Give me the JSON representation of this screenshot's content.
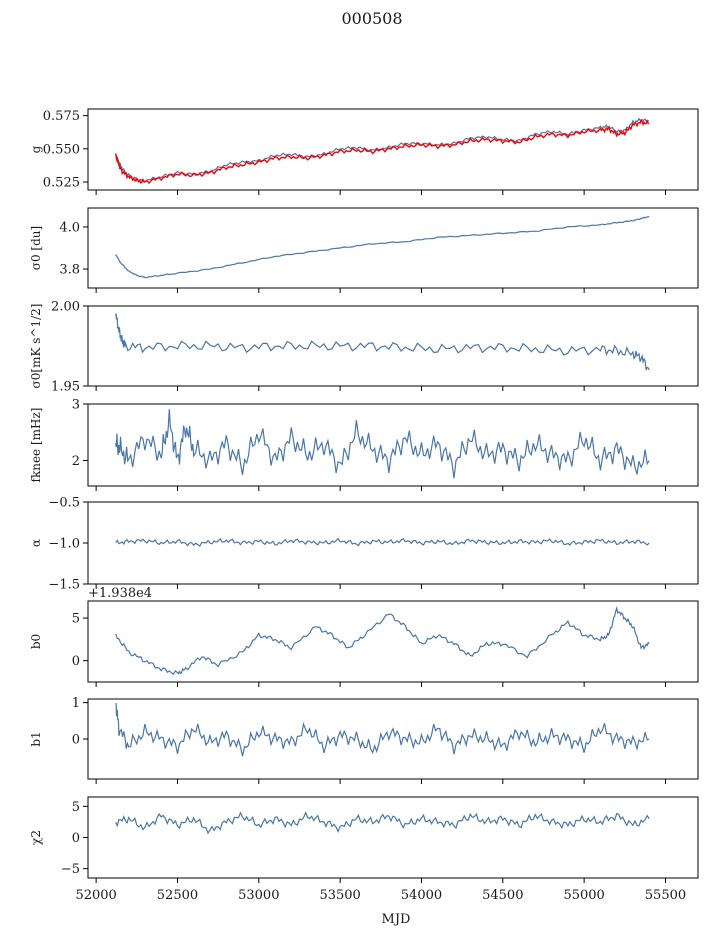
{
  "figure": {
    "title": "000508",
    "xlabel": "MJD",
    "xlim": [
      51950,
      55700
    ],
    "xticks": [
      52000,
      52500,
      53000,
      53500,
      54000,
      54500,
      55000,
      55500
    ],
    "offset_text": "+1.938e4",
    "colors": {
      "series": "#4a76a8",
      "overlay": "#ff0000",
      "axis": "#000000"
    }
  },
  "chart_data": [
    {
      "type": "line",
      "name": "gain",
      "ylabel": "g",
      "ylim": [
        0.519,
        0.58
      ],
      "yticks": [
        0.525,
        0.55,
        0.575
      ],
      "ytick_labels": [
        "0.525",
        "0.550",
        "0.575"
      ],
      "x": [
        52120,
        52140,
        52160,
        52200,
        52250,
        52300,
        52400,
        52500,
        52600,
        52700,
        52800,
        52900,
        53000,
        53100,
        53200,
        53300,
        53400,
        53500,
        53600,
        53700,
        53800,
        53900,
        54000,
        54100,
        54200,
        54300,
        54400,
        54500,
        54600,
        54700,
        54800,
        54900,
        55000,
        55100,
        55150,
        55200,
        55250,
        55300,
        55350,
        55400
      ],
      "series": [
        {
          "name": "gain",
          "color": "#4a76a8",
          "values": [
            0.546,
            0.54,
            0.535,
            0.53,
            0.527,
            0.526,
            0.529,
            0.532,
            0.531,
            0.533,
            0.538,
            0.54,
            0.541,
            0.545,
            0.546,
            0.544,
            0.546,
            0.55,
            0.551,
            0.549,
            0.551,
            0.554,
            0.554,
            0.553,
            0.554,
            0.558,
            0.559,
            0.557,
            0.556,
            0.561,
            0.563,
            0.561,
            0.564,
            0.566,
            0.567,
            0.563,
            0.564,
            0.57,
            0.572,
            0.571
          ]
        },
        {
          "name": "gain-overlay",
          "color": "#ff0000",
          "values": [
            0.545,
            0.538,
            0.533,
            0.529,
            0.526,
            0.525,
            0.528,
            0.531,
            0.53,
            0.532,
            0.536,
            0.538,
            0.54,
            0.543,
            0.544,
            0.543,
            0.545,
            0.548,
            0.549,
            0.548,
            0.55,
            0.552,
            0.553,
            0.552,
            0.553,
            0.556,
            0.557,
            0.556,
            0.555,
            0.559,
            0.561,
            0.56,
            0.563,
            0.564,
            0.565,
            0.561,
            0.562,
            0.568,
            0.57,
            0.569
          ]
        }
      ]
    },
    {
      "type": "line",
      "name": "sigma0-du",
      "ylabel": "σ0 [du]",
      "ylim": [
        3.71,
        4.09
      ],
      "yticks": [
        3.8,
        4.0
      ],
      "ytick_labels": [
        "3.8",
        "4.0"
      ],
      "x": [
        52120,
        52150,
        52200,
        52250,
        52300,
        52400,
        52500,
        52700,
        52900,
        53100,
        53300,
        53500,
        53700,
        53900,
        54100,
        54300,
        54500,
        54700,
        54900,
        55100,
        55200,
        55300,
        55350,
        55400
      ],
      "values": [
        3.87,
        3.83,
        3.79,
        3.77,
        3.76,
        3.77,
        3.78,
        3.8,
        3.83,
        3.86,
        3.88,
        3.9,
        3.92,
        3.93,
        3.95,
        3.96,
        3.97,
        3.98,
        4.0,
        4.01,
        4.02,
        4.03,
        4.04,
        4.05
      ]
    },
    {
      "type": "line",
      "name": "sigma0-mks",
      "ylabel": "σ0[mK s^1/2]",
      "ylim": [
        1.95,
        2.0
      ],
      "yticks": [
        1.95,
        2.0
      ],
      "ytick_labels": [
        "1.95",
        "2.00"
      ],
      "x": [
        52120,
        52140,
        52160,
        52180,
        52300,
        52500,
        52700,
        52900,
        53100,
        53300,
        53500,
        53700,
        53900,
        54100,
        54300,
        54500,
        54700,
        54900,
        55100,
        55200,
        55300,
        55350,
        55400
      ],
      "values": [
        1.995,
        1.985,
        1.978,
        1.975,
        1.974,
        1.975,
        1.975,
        1.974,
        1.975,
        1.975,
        1.975,
        1.975,
        1.974,
        1.973,
        1.974,
        1.974,
        1.973,
        1.972,
        1.973,
        1.972,
        1.97,
        1.968,
        1.96
      ]
    },
    {
      "type": "line",
      "name": "fknee",
      "ylabel": "fknee [mHz]",
      "ylim": [
        1.55,
        3.0
      ],
      "yticks": [
        2,
        3
      ],
      "ytick_labels": [
        "2",
        "3"
      ],
      "x": [
        52120,
        52150,
        52200,
        52300,
        52400,
        52450,
        52500,
        52550,
        52600,
        52700,
        52800,
        52900,
        53000,
        53100,
        53200,
        53300,
        53400,
        53500,
        53600,
        53700,
        53800,
        53900,
        54000,
        54100,
        54200,
        54300,
        54400,
        54500,
        54600,
        54700,
        54800,
        54900,
        55000,
        55100,
        55200,
        55300,
        55400
      ],
      "values": [
        2.3,
        2.2,
        2.0,
        2.4,
        2.1,
        2.7,
        2.0,
        2.6,
        2.2,
        2.0,
        2.3,
        1.9,
        2.5,
        2.0,
        2.4,
        2.1,
        2.3,
        1.9,
        2.5,
        2.2,
        2.0,
        2.4,
        2.1,
        2.3,
        1.9,
        2.4,
        2.1,
        2.2,
        2.0,
        2.3,
        2.1,
        2.0,
        2.4,
        2.0,
        2.2,
        1.9,
        2.0
      ]
    },
    {
      "type": "line",
      "name": "alpha",
      "ylabel": "α",
      "ylim": [
        -1.5,
        -0.5
      ],
      "yticks": [
        -1.5,
        -1.0,
        -0.5
      ],
      "ytick_labels": [
        "−1.5",
        "−1.0",
        "−0.5"
      ],
      "x": [
        52120,
        52200,
        52300,
        52400,
        52500,
        52600,
        52700,
        52800,
        52900,
        53000,
        53100,
        53200,
        53300,
        53400,
        53500,
        53600,
        53700,
        53800,
        53900,
        54000,
        54100,
        54200,
        54300,
        54400,
        54500,
        54600,
        54700,
        54800,
        54900,
        55000,
        55100,
        55200,
        55300,
        55400
      ],
      "values": [
        -1.0,
        -0.98,
        -0.97,
        -1.0,
        -0.98,
        -1.02,
        -0.99,
        -0.97,
        -1.0,
        -0.98,
        -1.01,
        -0.97,
        -0.99,
        -1.0,
        -0.97,
        -1.01,
        -0.98,
        -0.99,
        -0.97,
        -1.0,
        -0.98,
        -1.01,
        -0.97,
        -0.99,
        -1.0,
        -0.98,
        -0.99,
        -0.97,
        -1.01,
        -0.99,
        -0.97,
        -1.0,
        -0.98,
        -1.0
      ]
    },
    {
      "type": "line",
      "name": "b0",
      "ylabel": "b0",
      "ylim": [
        -2.5,
        7
      ],
      "yticks": [
        0,
        5
      ],
      "ytick_labels": [
        "0",
        "5"
      ],
      "x": [
        52120,
        52200,
        52300,
        52400,
        52500,
        52550,
        52650,
        52750,
        52900,
        53000,
        53100,
        53200,
        53350,
        53450,
        53550,
        53650,
        53800,
        53900,
        54000,
        54100,
        54200,
        54300,
        54400,
        54500,
        54650,
        54800,
        54900,
        55000,
        55100,
        55150,
        55200,
        55250,
        55300,
        55350,
        55400
      ],
      "values": [
        3,
        1,
        0,
        -1,
        -1.5,
        -1,
        0.5,
        -0.5,
        1,
        3,
        2.5,
        1.5,
        4,
        3,
        1.5,
        3,
        5.5,
        4,
        2,
        3,
        2,
        0.5,
        2,
        2,
        0.5,
        3,
        4.5,
        3,
        2.5,
        3,
        6,
        5,
        4,
        1.5,
        2
      ]
    },
    {
      "type": "line",
      "name": "b1",
      "ylabel": "b1",
      "ylim": [
        -1.1,
        1.1
      ],
      "yticks": [
        0,
        1
      ],
      "ytick_labels": [
        "0",
        "1"
      ],
      "x": [
        52120,
        52140,
        52200,
        52300,
        52400,
        52500,
        52600,
        52700,
        52800,
        52900,
        53000,
        53100,
        53200,
        53300,
        53400,
        53500,
        53600,
        53700,
        53800,
        53900,
        54000,
        54100,
        54200,
        54300,
        54400,
        54500,
        54600,
        54700,
        54800,
        54900,
        55000,
        55100,
        55200,
        55300,
        55400
      ],
      "values": [
        1.0,
        0.3,
        -0.2,
        0.2,
        0.0,
        -0.2,
        0.3,
        -0.1,
        0.1,
        -0.3,
        0.2,
        0.0,
        -0.1,
        0.3,
        -0.2,
        0.1,
        0.0,
        -0.3,
        0.2,
        0.0,
        -0.1,
        0.3,
        -0.2,
        0.1,
        0.0,
        -0.2,
        0.2,
        -0.1,
        0.1,
        0.0,
        -0.2,
        0.3,
        0.0,
        -0.1,
        0.0
      ]
    },
    {
      "type": "line",
      "name": "chi2",
      "ylabel": "χ2",
      "ylim": [
        -6.5,
        6.5
      ],
      "yticks": [
        -5,
        0,
        5
      ],
      "ytick_labels": [
        "−5",
        "0",
        "5"
      ],
      "x": [
        52120,
        52200,
        52300,
        52400,
        52500,
        52600,
        52700,
        52800,
        52900,
        53000,
        53100,
        53200,
        53300,
        53400,
        53500,
        53600,
        53700,
        53800,
        53900,
        54000,
        54100,
        54200,
        54300,
        54400,
        54500,
        54600,
        54700,
        54800,
        54900,
        55000,
        55100,
        55200,
        55300,
        55400
      ],
      "values": [
        2.5,
        3.0,
        1.5,
        3.5,
        2.0,
        3.0,
        1.0,
        2.5,
        3.5,
        2.0,
        3.0,
        2.0,
        3.5,
        2.5,
        1.5,
        3.0,
        2.5,
        3.5,
        2.0,
        3.0,
        2.5,
        2.0,
        3.5,
        2.5,
        3.0,
        2.0,
        3.5,
        2.5,
        2.0,
        3.0,
        2.5,
        3.5,
        2.0,
        3.0
      ]
    }
  ]
}
